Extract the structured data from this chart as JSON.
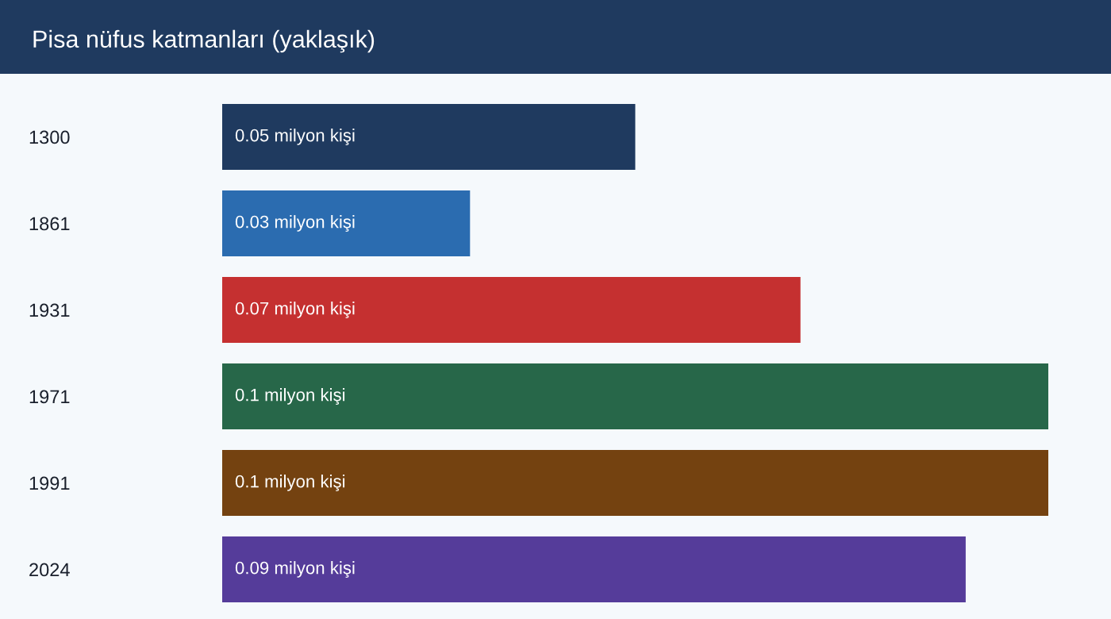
{
  "chart_data": {
    "type": "bar",
    "orientation": "horizontal",
    "title": "Pisa nüfus katmanları (yaklaşık)",
    "categories": [
      "1300",
      "1861",
      "1931",
      "1971",
      "1991",
      "2024"
    ],
    "values": [
      0.05,
      0.03,
      0.07,
      0.1,
      0.1,
      0.09
    ],
    "colors": [
      "#1f3a5f",
      "#2b6cb0",
      "#c53030",
      "#276749",
      "#744210",
      "#553c9a"
    ],
    "value_labels": [
      "0.05 milyon kişi",
      "0.03 milyon kişi",
      "0.07 milyon kişi",
      "0.1 milyon kişi",
      "0.1 milyon kişi",
      "0.09 milyon kişi"
    ],
    "xlim": [
      0,
      0.1
    ],
    "tick_labels": "y"
  }
}
